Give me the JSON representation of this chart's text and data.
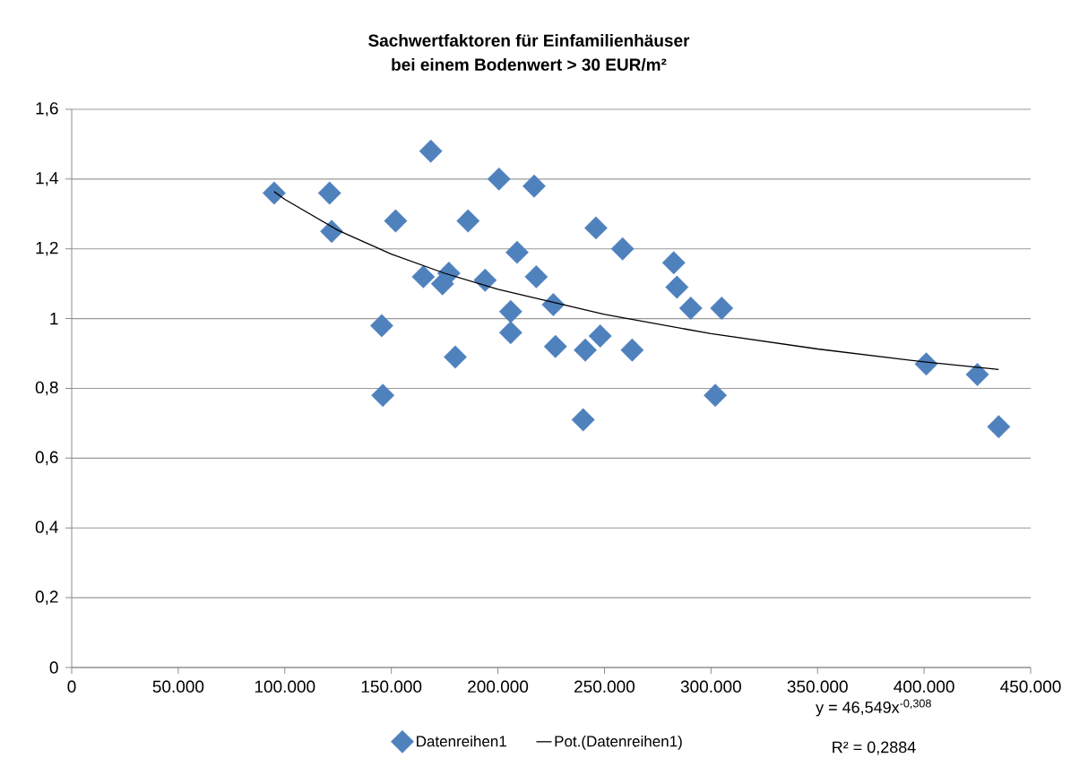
{
  "chart_data": {
    "type": "scatter",
    "title": "Sachwertfaktoren für Einfamilienhäuser",
    "subtitle": "bei einem Bodenwert > 30 EUR/m²",
    "xlim": [
      0,
      450000
    ],
    "ylim": [
      0,
      1.6
    ],
    "xticks": [
      0,
      {
        "value": 50000,
        "label": "50.000"
      },
      {
        "value": 100000,
        "label": "100.000"
      },
      {
        "value": 150000,
        "label": "150.000"
      },
      {
        "value": 200000,
        "label": "200.000"
      },
      {
        "value": 250000,
        "label": "250.000"
      },
      {
        "value": 300000,
        "label": "300.000"
      },
      {
        "value": 350000,
        "label": "350.000"
      },
      {
        "value": 400000,
        "label": "400.000"
      },
      {
        "value": 450000,
        "label": "450.000"
      }
    ],
    "yticks": [
      0,
      {
        "value": 0.2,
        "label": "0,2"
      },
      {
        "value": 0.4,
        "label": "0,4"
      },
      {
        "value": 0.6,
        "label": "0,6"
      },
      {
        "value": 0.8,
        "label": "0,8"
      },
      1,
      {
        "value": 1.2,
        "label": "1,2"
      },
      {
        "value": 1.4,
        "label": "1,4"
      },
      {
        "value": 1.6,
        "label": "1,6"
      }
    ],
    "grid": "y",
    "legend": "bottom",
    "series": [
      {
        "name": "Datenreihen1",
        "marker": "diamond",
        "color": "#4f81bd",
        "x": [
          95000,
          121000,
          122000,
          145500,
          146000,
          152000,
          165000,
          168500,
          174000,
          177000,
          180000,
          186000,
          194000,
          200500,
          206000,
          206000,
          209000,
          217000,
          218000,
          226000,
          227000,
          240000,
          241000,
          246000,
          248000,
          258500,
          263000,
          282500,
          284000,
          290500,
          302000,
          305000,
          401000,
          425000,
          435000
        ],
        "values": [
          1.36,
          1.36,
          1.25,
          0.98,
          0.78,
          1.28,
          1.12,
          1.48,
          1.1,
          1.13,
          0.89,
          1.28,
          1.11,
          1.4,
          1.02,
          0.96,
          1.19,
          1.38,
          1.12,
          1.04,
          0.92,
          0.71,
          0.91,
          1.26,
          0.95,
          1.2,
          0.91,
          1.16,
          1.09,
          1.03,
          0.78,
          1.03,
          0.87,
          0.84,
          0.69
        ]
      },
      {
        "name": "Pot.(Datenreihen1)",
        "type": "line",
        "marker": "none",
        "line_style": "solid",
        "color": "#000000",
        "x": [
          95000,
          100000,
          125000,
          150000,
          175000,
          200000,
          250000,
          300000,
          350000,
          400000,
          435000
        ],
        "values": [
          1.364,
          1.342,
          1.253,
          1.185,
          1.13,
          1.084,
          1.012,
          0.957,
          0.913,
          0.876,
          0.854
        ]
      }
    ],
    "annotations": [
      "y = 46,549x$^{-0,308}$",
      "R² = 0,2884"
    ]
  }
}
